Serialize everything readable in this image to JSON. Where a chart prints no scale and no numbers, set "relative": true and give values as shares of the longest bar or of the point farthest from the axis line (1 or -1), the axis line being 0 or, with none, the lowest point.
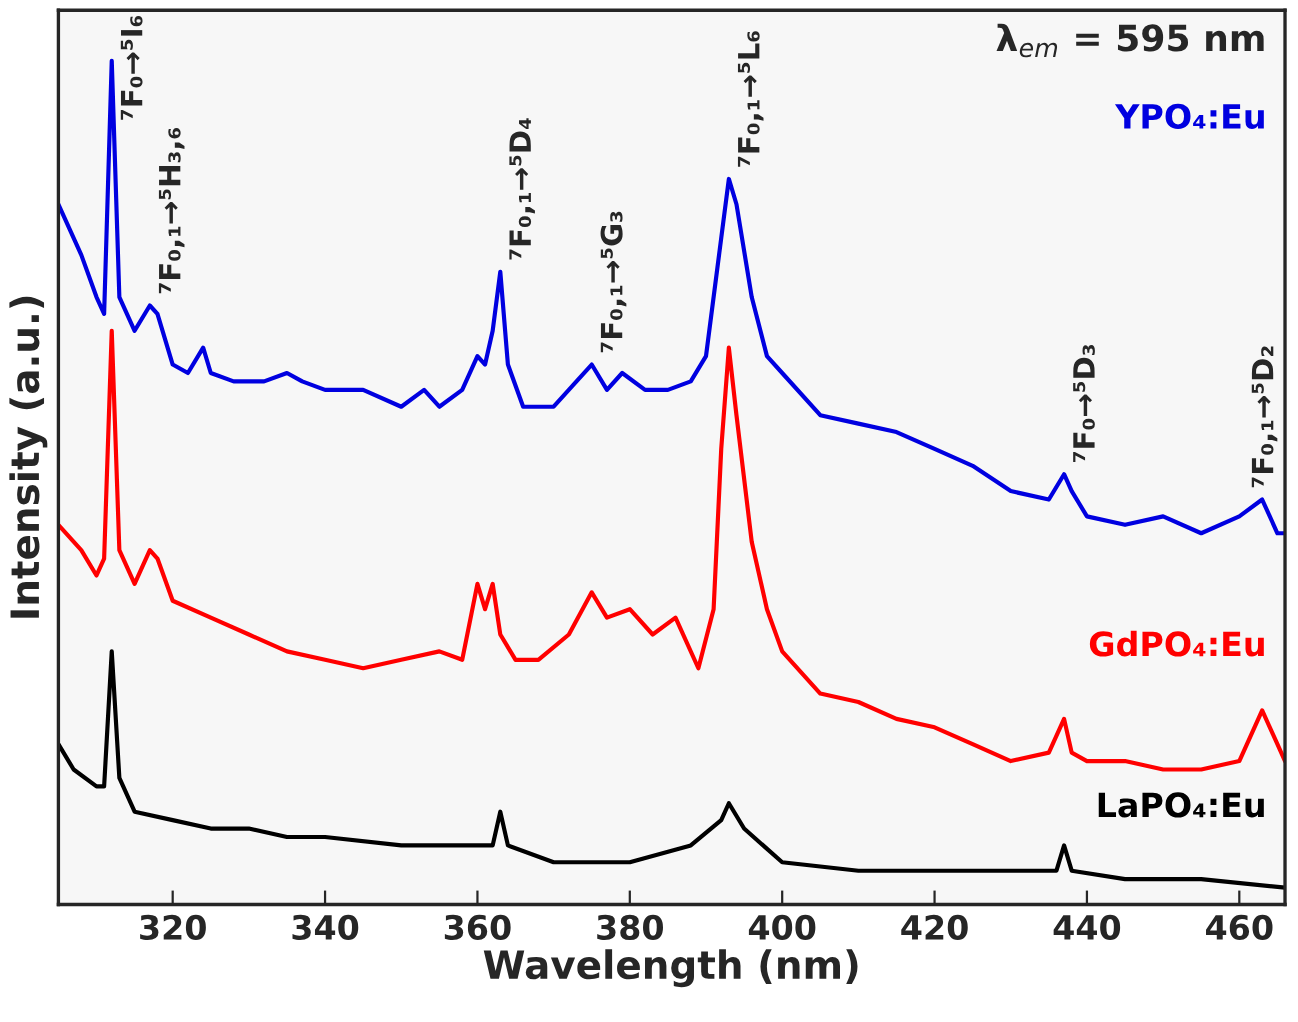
{
  "chart_data": {
    "type": "line",
    "relative": true,
    "xlabel": "Wavelength (nm)",
    "ylabel": "Intensity (a.u.)",
    "xlim": [
      305,
      466
    ],
    "xticks": [
      320,
      340,
      360,
      380,
      400,
      420,
      440,
      460
    ],
    "tick_labels": "x",
    "grid": false,
    "legend": false,
    "marker": "none",
    "line_style": "solid",
    "series": [
      {
        "name": "YPO₄:Eu",
        "color": "#0000e0",
        "x": [
          305,
          308,
          310,
          311,
          312,
          313,
          315,
          317,
          318,
          320,
          322,
          324,
          325,
          328,
          332,
          335,
          337,
          340,
          345,
          350,
          353,
          355,
          358,
          360,
          361,
          362,
          363,
          364,
          366,
          370,
          373,
          375,
          377,
          379,
          382,
          385,
          388,
          390,
          392,
          393,
          394,
          396,
          398,
          400,
          405,
          410,
          415,
          420,
          425,
          430,
          435,
          437,
          438,
          440,
          445,
          450,
          455,
          460,
          463,
          465,
          466
        ],
        "values": [
          0.83,
          0.77,
          0.72,
          0.7,
          1.0,
          0.72,
          0.68,
          0.71,
          0.7,
          0.64,
          0.63,
          0.66,
          0.63,
          0.62,
          0.62,
          0.63,
          0.62,
          0.61,
          0.61,
          0.59,
          0.61,
          0.59,
          0.61,
          0.65,
          0.64,
          0.68,
          0.75,
          0.64,
          0.59,
          0.59,
          0.62,
          0.64,
          0.61,
          0.63,
          0.61,
          0.61,
          0.62,
          0.65,
          0.79,
          0.86,
          0.83,
          0.72,
          0.65,
          0.63,
          0.58,
          0.57,
          0.56,
          0.54,
          0.52,
          0.49,
          0.48,
          0.51,
          0.49,
          0.46,
          0.45,
          0.46,
          0.44,
          0.46,
          0.48,
          0.44,
          0.44
        ]
      },
      {
        "name": "GdPO₄:Eu",
        "color": "#ff0000",
        "x": [
          305,
          308,
          310,
          311,
          312,
          313,
          315,
          317,
          318,
          320,
          325,
          330,
          335,
          340,
          345,
          350,
          355,
          358,
          360,
          361,
          362,
          363,
          365,
          368,
          372,
          375,
          377,
          380,
          383,
          386,
          389,
          391,
          392,
          393,
          394,
          396,
          398,
          400,
          405,
          410,
          415,
          420,
          425,
          430,
          435,
          437,
          438,
          440,
          445,
          450,
          455,
          460,
          463,
          465,
          466
        ],
        "values": [
          0.45,
          0.42,
          0.39,
          0.41,
          0.68,
          0.42,
          0.38,
          0.42,
          0.41,
          0.36,
          0.34,
          0.32,
          0.3,
          0.29,
          0.28,
          0.29,
          0.3,
          0.29,
          0.38,
          0.35,
          0.38,
          0.32,
          0.29,
          0.29,
          0.32,
          0.37,
          0.34,
          0.35,
          0.32,
          0.34,
          0.28,
          0.35,
          0.54,
          0.66,
          0.58,
          0.43,
          0.35,
          0.3,
          0.25,
          0.24,
          0.22,
          0.21,
          0.19,
          0.17,
          0.18,
          0.22,
          0.18,
          0.17,
          0.17,
          0.16,
          0.16,
          0.17,
          0.23,
          0.19,
          0.17
        ]
      },
      {
        "name": "LaPO₄:Eu",
        "color": "#000000",
        "x": [
          305,
          307,
          310,
          311,
          312,
          313,
          315,
          320,
          325,
          330,
          335,
          340,
          350,
          360,
          362,
          363,
          364,
          370,
          380,
          388,
          392,
          393,
          395,
          400,
          410,
          420,
          430,
          436,
          437,
          438,
          445,
          455,
          466
        ],
        "values": [
          0.19,
          0.16,
          0.14,
          0.14,
          0.3,
          0.15,
          0.11,
          0.1,
          0.09,
          0.09,
          0.08,
          0.08,
          0.07,
          0.07,
          0.07,
          0.11,
          0.07,
          0.05,
          0.05,
          0.07,
          0.1,
          0.12,
          0.09,
          0.05,
          0.04,
          0.04,
          0.04,
          0.04,
          0.07,
          0.04,
          0.03,
          0.03,
          0.02
        ]
      }
    ],
    "annotations": [
      "λ$_{em}$ = 595 nm",
      {
        "text": "⁷F₀→⁵I₆",
        "x": 312,
        "y": 1.0
      },
      {
        "text": "⁷F₀,₁→⁵H₃,₆",
        "x": 317,
        "y": 0.71
      },
      {
        "text": "⁷F₀,₁→⁵D₄",
        "x": 363,
        "y": 0.75
      },
      {
        "text": "⁷F₀,₁→⁵G₃",
        "x": 375,
        "y": 0.64
      },
      {
        "text": "⁷F₀,₁→⁵L₆",
        "x": 393,
        "y": 0.86
      },
      {
        "text": "⁷F₀→⁵D₃",
        "x": 437,
        "y": 0.51
      },
      {
        "text": "⁷F₀,₁→⁵D₂",
        "x": 463,
        "y": 0.48
      }
    ]
  }
}
